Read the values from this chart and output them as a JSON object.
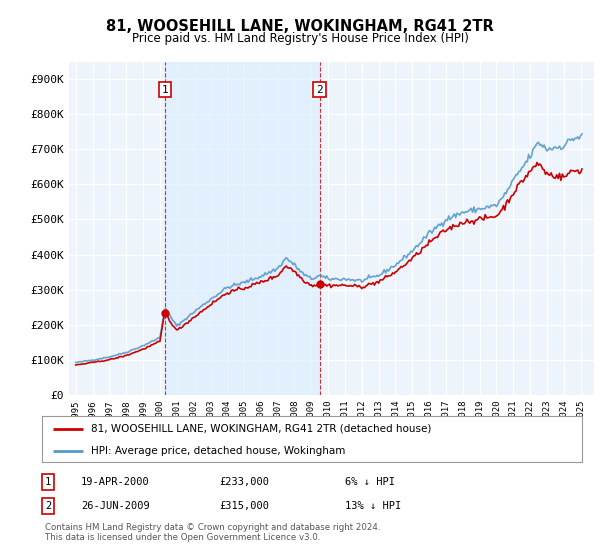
{
  "title": "81, WOOSEHILL LANE, WOKINGHAM, RG41 2TR",
  "subtitle": "Price paid vs. HM Land Registry's House Price Index (HPI)",
  "ylabel_ticks": [
    "£0",
    "£100K",
    "£200K",
    "£300K",
    "£400K",
    "£500K",
    "£600K",
    "£700K",
    "£800K",
    "£900K"
  ],
  "ytick_values": [
    0,
    100000,
    200000,
    300000,
    400000,
    500000,
    600000,
    700000,
    800000,
    900000
  ],
  "ylim": [
    0,
    950000
  ],
  "legend_line1": "81, WOOSEHILL LANE, WOKINGHAM, RG41 2TR (detached house)",
  "legend_line2": "HPI: Average price, detached house, Wokingham",
  "annotation1_date": "19-APR-2000",
  "annotation1_price": "£233,000",
  "annotation1_hpi": "6% ↓ HPI",
  "annotation2_date": "26-JUN-2009",
  "annotation2_price": "£315,000",
  "annotation2_hpi": "13% ↓ HPI",
  "copyright": "Contains HM Land Registry data © Crown copyright and database right 2024.\nThis data is licensed under the Open Government Licence v3.0.",
  "red_color": "#cc0000",
  "blue_color": "#5599cc",
  "background_plot": "#eef4fb",
  "grid_color": "#ffffff",
  "shade_color": "#ddeeff",
  "purchase1_year": 2000.29,
  "purchase1_y": 233000,
  "purchase2_year": 2009.49,
  "purchase2_y": 315000,
  "xlim_min": 1994.6,
  "xlim_max": 2025.8
}
